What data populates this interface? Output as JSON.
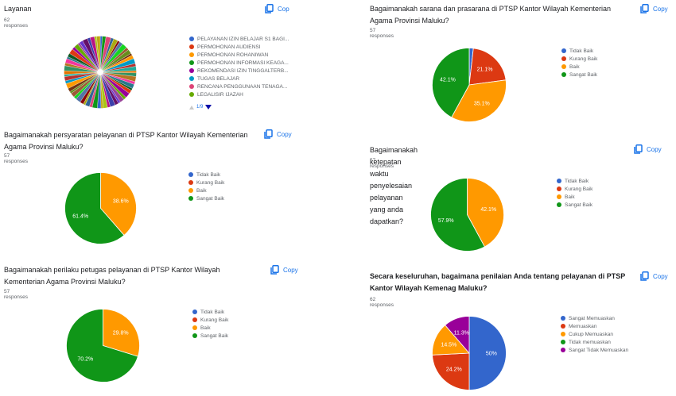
{
  "copy_label": "Copy",
  "copy_label_truncated": "Cop",
  "cards": [
    {
      "id": "layanan",
      "title": "Layanan",
      "responses": "62 responses",
      "legend": [
        {
          "label": "PELAYANAN IZIN BELAJAR S1 BAGI...",
          "color": "#3366cc"
        },
        {
          "label": "PERMOHONAN AUDIENSI",
          "color": "#dc3912"
        },
        {
          "label": "PERMOHONAN ROHANIWAN",
          "color": "#ff9900"
        },
        {
          "label": "PERMOHONAN INFORMASI KEAGA...",
          "color": "#109618"
        },
        {
          "label": "REKOMENDASI IZIN TINGGALTERB...",
          "color": "#990099"
        },
        {
          "label": "TUGAS BELAJAR",
          "color": "#0099c6"
        },
        {
          "label": "RENCANA PENGGUNAAN TENAGA...",
          "color": "#dd4477"
        },
        {
          "label": "LEGALISIR IJAZAH",
          "color": "#66aa00"
        }
      ],
      "pager": "1/9"
    },
    {
      "id": "sarana",
      "title": "Bagaimanakah sarana dan prasarana di PTSP Kantor Wilayah Kementerian Agama Provinsi Maluku?",
      "responses": "57 responses",
      "legend": [
        {
          "label": "Tidak Baik",
          "color": "#3366cc"
        },
        {
          "label": "Kurang Baik",
          "color": "#dc3912"
        },
        {
          "label": "Baik",
          "color": "#ff9900"
        },
        {
          "label": "Sangat Baik",
          "color": "#109618"
        }
      ]
    },
    {
      "id": "persyaratan",
      "title": "Bagaimanakah persyaratan pelayanan di PTSP Kantor Wilayah Kementerian Agama Provinsi Maluku?",
      "responses": "57 responses",
      "legend": [
        {
          "label": "Tidak Baik",
          "color": "#3366cc"
        },
        {
          "label": "Kurang Baik",
          "color": "#dc3912"
        },
        {
          "label": "Baik",
          "color": "#ff9900"
        },
        {
          "label": "Sangat Baik",
          "color": "#109618"
        }
      ]
    },
    {
      "id": "ketepatan",
      "title": "Bagaimanakah ketepatan waktu penyelesaian pelayanan yang anda dapatkan?",
      "responses": "57 responses",
      "legend": [
        {
          "label": "Tidak Baik",
          "color": "#3366cc"
        },
        {
          "label": "Kurang Baik",
          "color": "#dc3912"
        },
        {
          "label": "Baik",
          "color": "#ff9900"
        },
        {
          "label": "Sangat Baik",
          "color": "#109618"
        }
      ]
    },
    {
      "id": "perilaku",
      "title": "Bagaimanakah perilaku petugas pelayanan  di PTSP Kantor Wilayah Kementerian Agama Provinsi Maluku?",
      "responses": "57 responses",
      "legend": [
        {
          "label": "Tidak Baik",
          "color": "#3366cc"
        },
        {
          "label": "Kurang Baik",
          "color": "#dc3912"
        },
        {
          "label": "Baik",
          "color": "#ff9900"
        },
        {
          "label": "Sangat Baik",
          "color": "#109618"
        }
      ]
    },
    {
      "id": "keseluruhan",
      "title": "Secara keseluruhan, bagaimana penilaian Anda tentang pelayanan di PTSP Kantor Wilayah Kemenag Maluku?",
      "responses": "62 responses",
      "legend": [
        {
          "label": "Sangat Memuaskan",
          "color": "#3366cc"
        },
        {
          "label": "Memuaskan",
          "color": "#dc3912"
        },
        {
          "label": "Cukup Memuaskan",
          "color": "#ff9900"
        },
        {
          "label": "Tidak memuaskan",
          "color": "#109618"
        },
        {
          "label": "Sangat Tidak Memuaskan",
          "color": "#990099"
        }
      ]
    }
  ],
  "chart_data": [
    {
      "type": "pie",
      "title": "Layanan",
      "subtitle": "62 responses",
      "categories": [
        "PELAYANAN IZIN BELAJAR S1 BAGI...",
        "PERMOHONAN AUDIENSI",
        "PERMOHONAN ROHANIWAN",
        "PERMOHONAN INFORMASI KEAGA...",
        "REKOMENDASI IZIN TINGGALTERB...",
        "TUGAS BELAJAR",
        "RENCANA PENGGUNAAN TENAGA...",
        "LEGALISIR IJAZAH"
      ],
      "note": "Pie has ~62 thin slices (one per distinct response); legend page 1/9",
      "slice_count": 62,
      "legend_position": "right"
    },
    {
      "type": "pie",
      "title": "Bagaimanakah sarana dan prasarana di PTSP Kantor Wilayah Kementerian Agama Provinsi Maluku?",
      "subtitle": "57 responses",
      "categories": [
        "Tidak Baik",
        "Kurang Baik",
        "Baik",
        "Sangat Baik"
      ],
      "values": [
        1.8,
        21.1,
        35.1,
        42.1
      ],
      "labels": [
        "",
        "21.1%",
        "35.1%",
        "42.1%"
      ],
      "colors": [
        "#3366cc",
        "#dc3912",
        "#ff9900",
        "#109618"
      ],
      "legend_position": "right"
    },
    {
      "type": "pie",
      "title": "Bagaimanakah persyaratan pelayanan di PTSP Kantor Wilayah Kementerian Agama Provinsi Maluku?",
      "subtitle": "57 responses",
      "categories": [
        "Tidak Baik",
        "Kurang Baik",
        "Baik",
        "Sangat Baik"
      ],
      "values": [
        0,
        0,
        38.6,
        61.4
      ],
      "labels": [
        "",
        "",
        "38.6%",
        "61.4%"
      ],
      "colors": [
        "#3366cc",
        "#dc3912",
        "#ff9900",
        "#109618"
      ],
      "legend_position": "right"
    },
    {
      "type": "pie",
      "title": "Bagaimanakah ketepatan waktu penyelesaian pelayanan yang anda dapatkan?",
      "subtitle": "57 responses",
      "categories": [
        "Tidak Baik",
        "Kurang Baik",
        "Baik",
        "Sangat Baik"
      ],
      "values": [
        0,
        0,
        42.1,
        57.9
      ],
      "labels": [
        "",
        "",
        "42.1%",
        "57.9%"
      ],
      "colors": [
        "#3366cc",
        "#dc3912",
        "#ff9900",
        "#109618"
      ],
      "legend_position": "right"
    },
    {
      "type": "pie",
      "title": "Bagaimanakah perilaku petugas pelayanan  di PTSP Kantor Wilayah Kementerian Agama Provinsi Maluku?",
      "subtitle": "57 responses",
      "categories": [
        "Tidak Baik",
        "Kurang Baik",
        "Baik",
        "Sangat Baik"
      ],
      "values": [
        0,
        0,
        29.8,
        70.2
      ],
      "labels": [
        "",
        "",
        "29.8%",
        "70.2%"
      ],
      "colors": [
        "#3366cc",
        "#dc3912",
        "#ff9900",
        "#109618"
      ],
      "legend_position": "right"
    },
    {
      "type": "pie",
      "title": "Secara keseluruhan, bagaimana penilaian Anda tentang pelayanan di PTSP Kantor Wilayah Kemenag Maluku?",
      "subtitle": "62 responses",
      "categories": [
        "Sangat Memuaskan",
        "Memuaskan",
        "Cukup Memuaskan",
        "Tidak memuaskan",
        "Sangat Tidak Memuaskan"
      ],
      "values": [
        50,
        24.2,
        14.5,
        0,
        11.3
      ],
      "labels": [
        "50%",
        "24.2%",
        "14.5%",
        "",
        "11.3%"
      ],
      "colors": [
        "#3366cc",
        "#dc3912",
        "#ff9900",
        "#109618",
        "#990099"
      ],
      "legend_position": "right"
    }
  ]
}
